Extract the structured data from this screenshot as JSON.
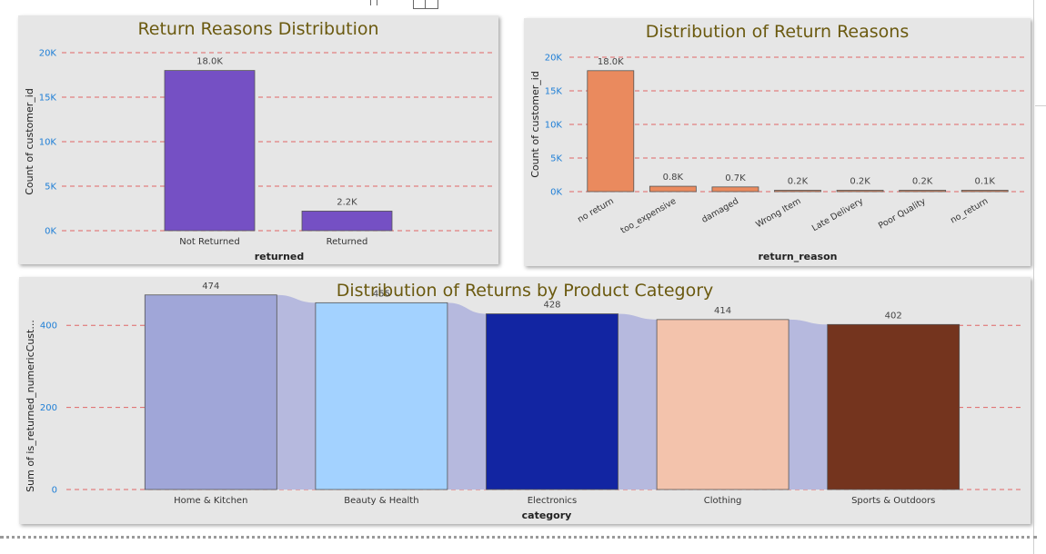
{
  "chart_data": [
    {
      "type": "bar",
      "title": "Return Reasons Distribution",
      "xlabel": "returned",
      "ylabel": "Count of customer_id",
      "categories": [
        "Not Returned",
        "Returned"
      ],
      "values": [
        18000,
        2200
      ],
      "data_labels": [
        "18.0K",
        "2.2K"
      ],
      "ylim": [
        0,
        20000
      ],
      "yticks": [
        0,
        5000,
        10000,
        15000,
        20000
      ],
      "ytick_labels": [
        "0K",
        "5K",
        "10K",
        "15K",
        "20K"
      ],
      "colors": [
        "#7550c4",
        "#7550c4"
      ],
      "grid": true
    },
    {
      "type": "bar",
      "title": "Distribution of Return Reasons",
      "xlabel": "return_reason",
      "ylabel": "Count of customer_id",
      "categories": [
        "no return",
        "too_expensive",
        "damaged",
        "Wrong Item",
        "Late Delivery",
        "Poor Quality",
        "no_return"
      ],
      "values": [
        18000,
        800,
        700,
        200,
        200,
        200,
        100
      ],
      "data_labels": [
        "18.0K",
        "0.8K",
        "0.7K",
        "0.2K",
        "0.2K",
        "0.2K",
        "0.1K"
      ],
      "ylim": [
        0,
        20000
      ],
      "yticks": [
        0,
        5000,
        10000,
        15000,
        20000
      ],
      "ytick_labels": [
        "0K",
        "5K",
        "10K",
        "15K",
        "20K"
      ],
      "colors": [
        "#ea8a5e",
        "#ea8a5e",
        "#ea8a5e",
        "#ea8a5e",
        "#ea8a5e",
        "#ea8a5e",
        "#ea8a5e"
      ],
      "grid": true
    },
    {
      "type": "bar",
      "title": "Distribution of Returns by Product Category",
      "xlabel": "category",
      "ylabel": "Sum of is_returned_numericCust...",
      "categories": [
        "Home & Kitchen",
        "Beauty & Health",
        "Electronics",
        "Clothing",
        "Sports & Outdoors"
      ],
      "values": [
        474,
        455,
        428,
        414,
        402
      ],
      "data_labels": [
        "474",
        "455",
        "428",
        "414",
        "402"
      ],
      "ylim": [
        0,
        500
      ],
      "yticks": [
        0,
        200,
        400
      ],
      "ytick_labels": [
        "0",
        "200",
        "400"
      ],
      "colors": [
        "#a0a6d8",
        "#a3d2ff",
        "#1225a2",
        "#f3c3ac",
        "#74341e"
      ],
      "ribbon_color": "#b6b9de",
      "grid": true
    }
  ]
}
